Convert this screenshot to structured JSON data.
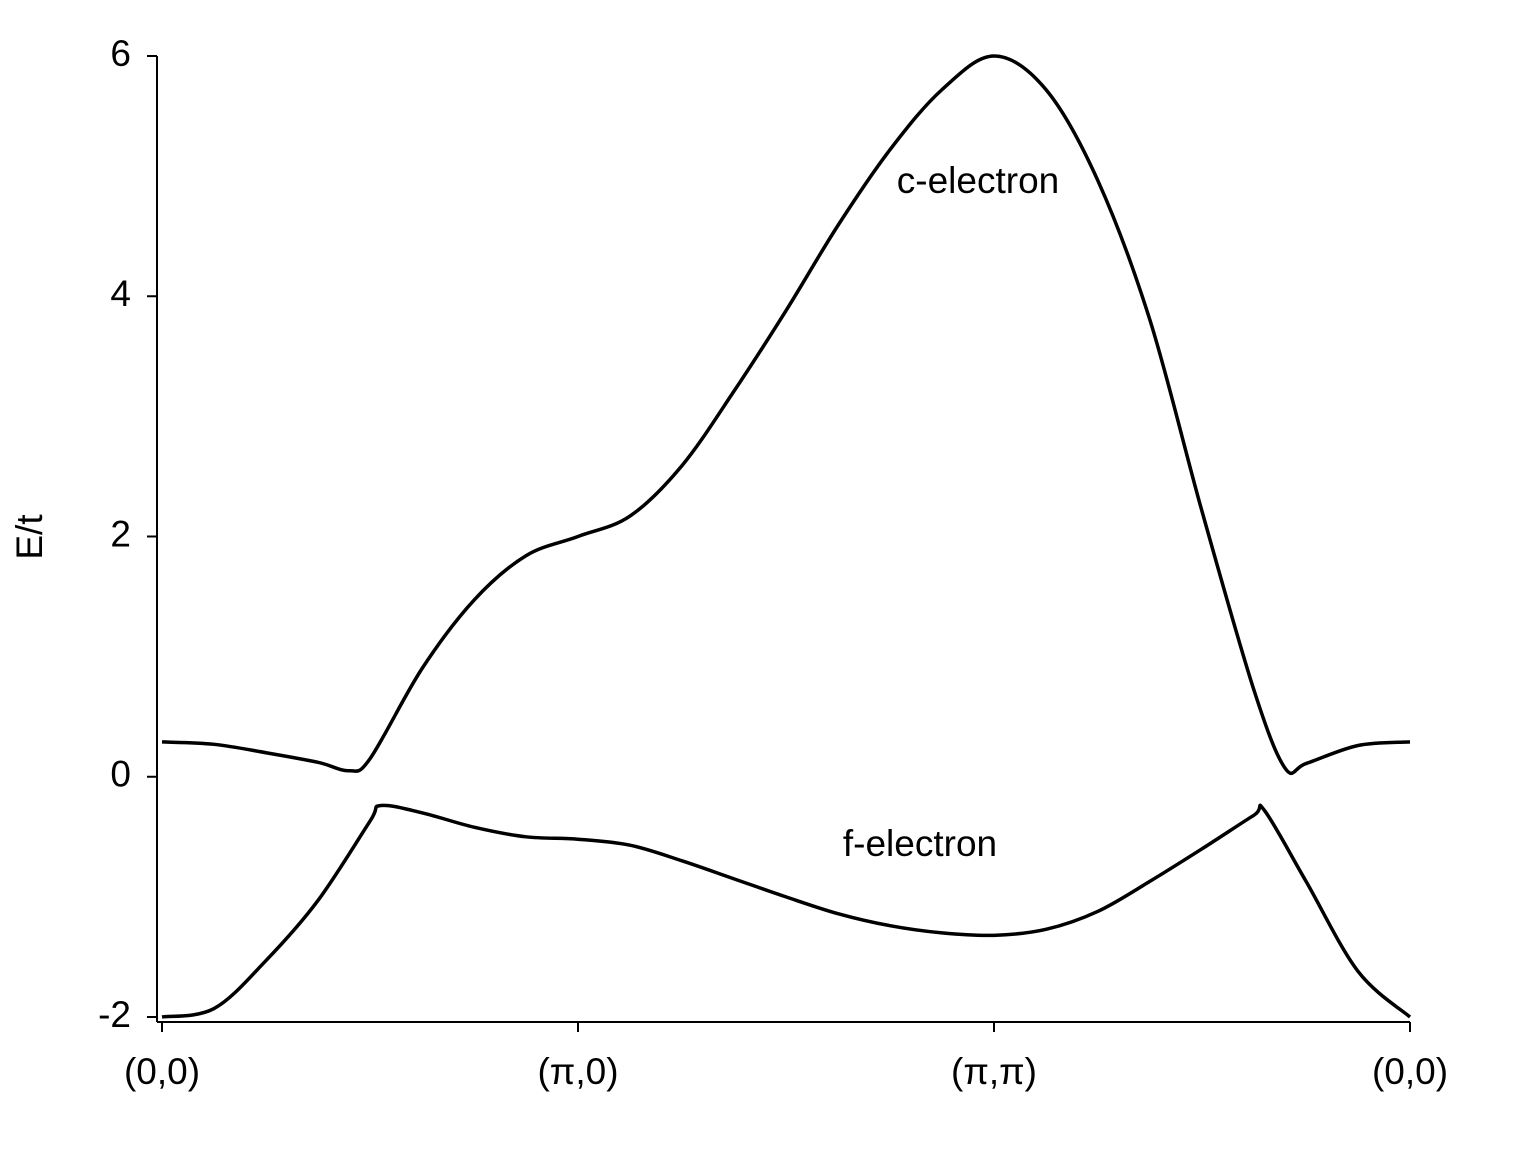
{
  "chart_data": {
    "type": "line",
    "ylabel": "E/t",
    "xlim": [
      0,
      3
    ],
    "xticks": [
      {
        "value": 0,
        "label": "(0,0)"
      },
      {
        "value": 1,
        "label": "(π,0)"
      },
      {
        "value": 2,
        "label": "(π,π)"
      },
      {
        "value": 3,
        "label": "(0,0)"
      }
    ],
    "ylim": [
      -2,
      6
    ],
    "yticks": [
      -2,
      0,
      2,
      4,
      6
    ],
    "series": [
      {
        "name": "c-electron",
        "color": "#000000",
        "x": [
          0,
          0.125,
          0.25,
          0.375,
          0.45,
          0.5,
          0.625,
          0.75,
          0.875,
          1,
          1.125,
          1.25,
          1.375,
          1.5,
          1.625,
          1.75,
          1.875,
          2,
          2.125,
          2.25,
          2.375,
          2.5,
          2.625,
          2.7,
          2.75,
          2.875,
          3
        ],
        "values": [
          0.29,
          0.27,
          0.2,
          0.12,
          0.05,
          0.15,
          0.9,
          1.47,
          1.84,
          2.0,
          2.17,
          2.59,
          3.21,
          3.88,
          4.59,
          5.22,
          5.72,
          6.0,
          5.72,
          4.96,
          3.8,
          2.21,
          0.72,
          0.07,
          0.11,
          0.26,
          0.29
        ]
      },
      {
        "name": "f-electron",
        "color": "#000000",
        "x": [
          0,
          0.125,
          0.25,
          0.375,
          0.5,
          0.525,
          0.625,
          0.75,
          0.875,
          1,
          1.125,
          1.25,
          1.375,
          1.5,
          1.625,
          1.75,
          1.875,
          2,
          2.125,
          2.25,
          2.375,
          2.5,
          2.625,
          2.65,
          2.75,
          2.875,
          3
        ],
        "values": [
          -2.0,
          -1.93,
          -1.53,
          -1.03,
          -0.37,
          -0.24,
          -0.3,
          -0.42,
          -0.5,
          -0.52,
          -0.57,
          -0.7,
          -0.85,
          -1.0,
          -1.14,
          -1.24,
          -1.3,
          -1.32,
          -1.27,
          -1.12,
          -0.87,
          -0.6,
          -0.32,
          -0.28,
          -0.87,
          -1.62,
          -2.0
        ]
      }
    ]
  }
}
